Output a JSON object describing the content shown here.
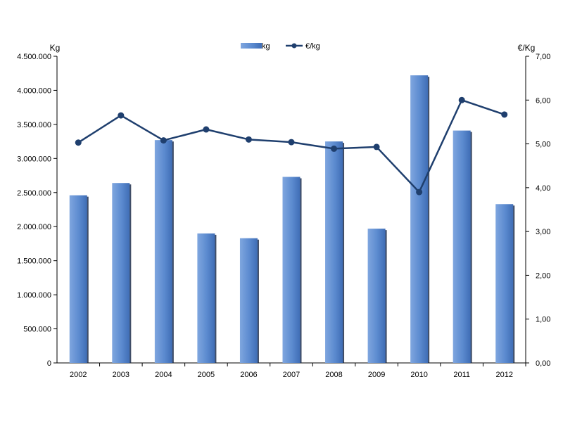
{
  "chart_data": {
    "type": "bar",
    "categories": [
      "2002",
      "2003",
      "2004",
      "2005",
      "2006",
      "2007",
      "2008",
      "2009",
      "2010",
      "2011",
      "2012"
    ],
    "series": [
      {
        "name": "kg",
        "type": "bar",
        "axis": "left",
        "color": "#5B8ACF",
        "values": [
          2460000,
          2640000,
          3270000,
          1900000,
          1830000,
          2730000,
          3250000,
          1970000,
          4220000,
          3410000,
          2330000
        ]
      },
      {
        "name": "€/kg",
        "type": "line",
        "axis": "right",
        "color": "#1F3F6E",
        "values": [
          5.03,
          5.65,
          5.08,
          5.33,
          5.1,
          5.04,
          4.89,
          4.93,
          3.9,
          6.0,
          5.67
        ]
      }
    ],
    "ylabel": "Kg",
    "ylabel_right": "€/Kg",
    "ylim": [
      0,
      4500000
    ],
    "ylim_right": [
      0,
      7
    ],
    "yticks": [
      "0",
      "500.000",
      "1.000.000",
      "1.500.000",
      "2.000.000",
      "2.500.000",
      "3.000.000",
      "3.500.000",
      "4.000.000",
      "4.500.000"
    ],
    "yticks_right": [
      "0,00",
      "1,00",
      "2,00",
      "3,00",
      "4,00",
      "5,00",
      "6,00",
      "7,00"
    ],
    "grid": false,
    "legend": "top-center"
  }
}
